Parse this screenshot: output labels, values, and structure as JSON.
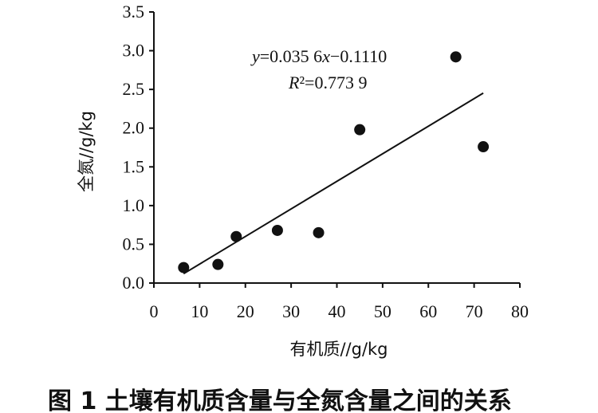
{
  "chart_data": {
    "type": "scatter",
    "xlabel": "有机质//g/kg",
    "ylabel": "全氮//g/kg",
    "xlim": [
      0,
      80
    ],
    "ylim": [
      0,
      3.5
    ],
    "x_ticks": [
      "0",
      "10",
      "20",
      "30",
      "40",
      "50",
      "60",
      "70",
      "80"
    ],
    "y_ticks": [
      "0.0",
      "0.5",
      "1.0",
      "1.5",
      "2.0",
      "2.5",
      "3.0",
      "3.5"
    ],
    "points": [
      {
        "x": 6.5,
        "y": 0.2
      },
      {
        "x": 14,
        "y": 0.24
      },
      {
        "x": 18,
        "y": 0.6
      },
      {
        "x": 27,
        "y": 0.68
      },
      {
        "x": 36,
        "y": 0.65
      },
      {
        "x": 45,
        "y": 1.98
      },
      {
        "x": 66,
        "y": 2.92
      },
      {
        "x": 72,
        "y": 1.76
      }
    ],
    "trendline": {
      "slope": 0.0356,
      "intercept": -0.111,
      "x_range": [
        6.5,
        72
      ]
    },
    "equation": "y=0.035 6x−0.1110",
    "r2": "R²=0.773 9",
    "grid": false
  },
  "caption": "图 1    土壤有机质含量与全氮含量之间的关系"
}
